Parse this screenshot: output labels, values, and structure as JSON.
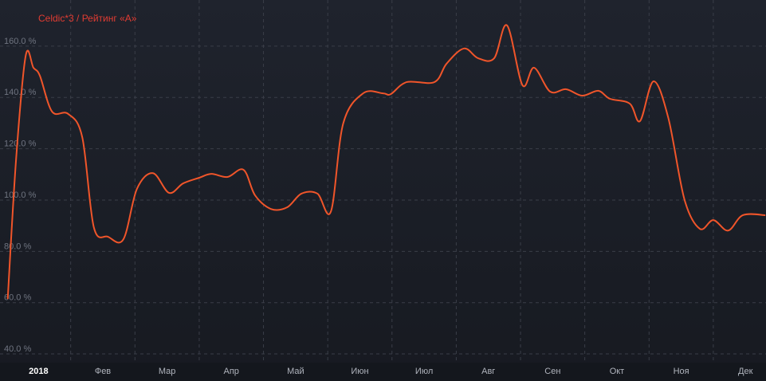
{
  "chart_data": {
    "type": "line",
    "series": [
      {
        "name": "Celdic*3 / Рейтинг «А»",
        "color": "#f0552a",
        "x": [
          0.02,
          0.15,
          0.3,
          0.42,
          0.52,
          0.71,
          0.96,
          1.18,
          1.36,
          1.58,
          1.82,
          2.03,
          2.28,
          2.53,
          2.75,
          3.0,
          3.19,
          3.44,
          3.69,
          3.87,
          4.12,
          4.37,
          4.59,
          4.84,
          5.05,
          5.24,
          5.55,
          5.86,
          5.98,
          6.23,
          6.66,
          6.85,
          7.12,
          7.34,
          7.59,
          7.79,
          8.03,
          8.21,
          8.46,
          8.71,
          8.96,
          9.21,
          9.39,
          9.7,
          9.86,
          10.07,
          10.3,
          10.55,
          10.79,
          11.0,
          11.23,
          11.46,
          11.81
        ],
        "values": [
          61.4,
          115.8,
          156.3,
          151.6,
          148.5,
          134.5,
          133.6,
          124.5,
          89.4,
          85.7,
          84.7,
          104.3,
          110.5,
          102.8,
          106.5,
          108.7,
          110.2,
          109.0,
          111.8,
          101.8,
          96.5,
          97.2,
          102.5,
          102.5,
          95.6,
          129.8,
          141.6,
          141.6,
          141.3,
          146.0,
          146.0,
          153.2,
          159.1,
          155.3,
          155.3,
          168.1,
          144.8,
          151.6,
          142.3,
          143.2,
          140.7,
          142.6,
          139.5,
          137.6,
          130.8,
          146.3,
          132.0,
          100.3,
          88.8,
          92.2,
          88.1,
          94.1,
          94.1
        ]
      }
    ],
    "xlim": [
      -0.1,
      11.82
    ],
    "xticks": [
      {
        "value": 0,
        "label": "2018"
      },
      {
        "value": 1,
        "label": "Фев"
      },
      {
        "value": 2,
        "label": "Мар"
      },
      {
        "value": 3,
        "label": "Апр"
      },
      {
        "value": 4,
        "label": "Май"
      },
      {
        "value": 5,
        "label": "Июн"
      },
      {
        "value": 6,
        "label": "Июл"
      },
      {
        "value": 7,
        "label": "Авг"
      },
      {
        "value": 8,
        "label": "Сен"
      },
      {
        "value": 9,
        "label": "Окт"
      },
      {
        "value": 10,
        "label": "Ноя"
      },
      {
        "value": 11,
        "label": "Дек"
      }
    ],
    "ylim": [
      36.6,
      178
    ],
    "yticks": [
      {
        "value": 40,
        "label": "40.0 %"
      },
      {
        "value": 60,
        "label": "60.0 %"
      },
      {
        "value": 80,
        "label": "80.0 %"
      },
      {
        "value": 100,
        "label": "100.0 %"
      },
      {
        "value": 120,
        "label": "120.0 %"
      },
      {
        "value": 140,
        "label": "140.0 %"
      },
      {
        "value": 160,
        "label": "160.0 %"
      }
    ],
    "grid": true
  }
}
